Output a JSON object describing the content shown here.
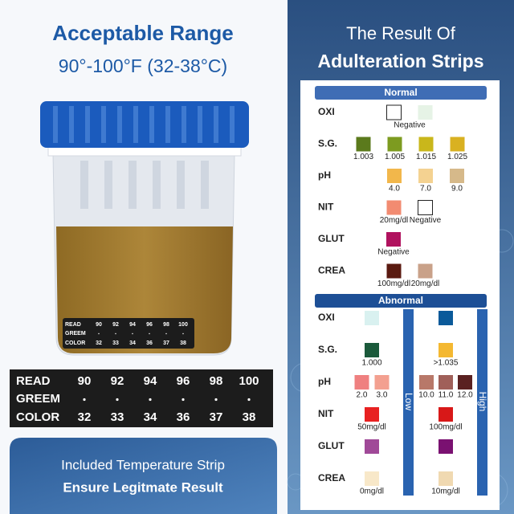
{
  "left": {
    "title": "Acceptable Range",
    "subtitle": "90°-100°F (32-38°C)"
  },
  "strip": {
    "read_label": "READ",
    "read": [
      90,
      92,
      94,
      96,
      98,
      100
    ],
    "green_label": "GREEM",
    "color_label": "COLOR",
    "color": [
      32,
      33,
      34,
      36,
      37,
      38
    ]
  },
  "footer": {
    "line1": "Included Temperature Strip",
    "line2": "Ensure Legitmate Result"
  },
  "right": {
    "title_line1": "The Result Of",
    "title_line2": "Adulteration Strips"
  },
  "normal": {
    "title": "Normal",
    "rows": [
      {
        "label": "OXI",
        "swatches": [
          "#ffffff",
          "#e6f3e6"
        ],
        "labels": [
          "Negative"
        ]
      },
      {
        "label": "S.G.",
        "swatches": [
          "#5b7a1c",
          "#7d9b20",
          "#c9b71b",
          "#d9b121"
        ],
        "labels": [
          "1.003",
          "1.005",
          "1.015",
          "1.025"
        ]
      },
      {
        "label": "pH",
        "swatches": [
          "#f2b74b",
          "#f4d291",
          "#d6b98a"
        ],
        "labels": [
          "4.0",
          "7.0",
          "9.0"
        ]
      },
      {
        "label": "NIT",
        "swatches": [
          "#f28b71",
          "#ffffff"
        ],
        "labels": [
          "20mg/dl",
          "Negative"
        ]
      },
      {
        "label": "GLUT",
        "swatches": [
          "#b0125e"
        ],
        "labels": [
          "Negative"
        ]
      },
      {
        "label": "CREA",
        "swatches": [
          "#5a1a10",
          "#c9a189"
        ],
        "labels": [
          "100mg/dl",
          "20mg/dl"
        ]
      }
    ]
  },
  "abnormal": {
    "title": "Abnormal",
    "low_label": "Low",
    "high_label": "High",
    "rows": [
      {
        "label": "OXI",
        "low": {
          "swatches": [
            "#d9f1f0"
          ]
        },
        "high": {
          "swatches": [
            "#0b5a9a"
          ]
        }
      },
      {
        "label": "S.G.",
        "low": {
          "swatches": [
            "#1b5a3b"
          ],
          "labels": [
            "1.000"
          ]
        },
        "high": {
          "swatches": [
            "#f4b831"
          ],
          "labels": [
            ">1.035"
          ]
        }
      },
      {
        "label": "pH",
        "low": {
          "swatches": [
            "#ef8080",
            "#f3a090"
          ],
          "labels": [
            "2.0",
            "3.0"
          ]
        },
        "high": {
          "swatches": [
            "#b87869",
            "#a06059",
            "#5a2121"
          ],
          "labels": [
            "10.0",
            "11.0",
            "12.0"
          ]
        }
      },
      {
        "label": "NIT",
        "low": {
          "swatches": [
            "#e82121"
          ],
          "labels": [
            "50mg/dl"
          ]
        },
        "high": {
          "swatches": [
            "#d81818"
          ],
          "labels": [
            "100mg/dl"
          ]
        }
      },
      {
        "label": "GLUT",
        "low": {
          "swatches": [
            "#a04998"
          ]
        },
        "high": {
          "swatches": [
            "#7a1171"
          ]
        }
      },
      {
        "label": "CREA",
        "low": {
          "swatches": [
            "#f8e8c9"
          ],
          "labels": [
            "0mg/dl"
          ]
        },
        "high": {
          "swatches": [
            "#f0d9b1"
          ],
          "labels": [
            "10mg/dl"
          ]
        }
      }
    ]
  }
}
